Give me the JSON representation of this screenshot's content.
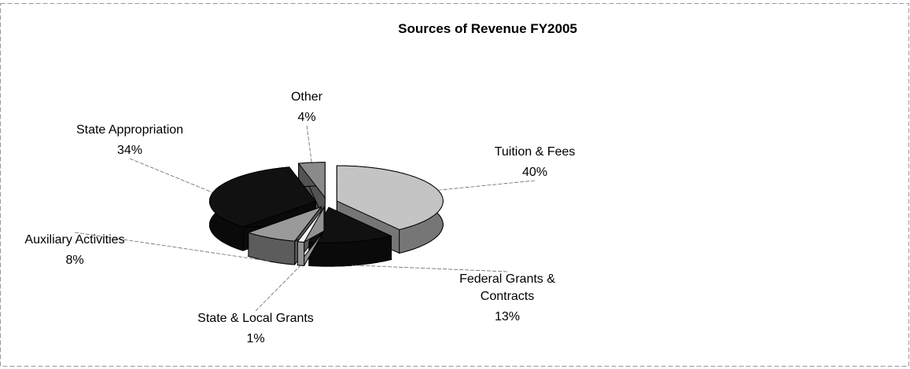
{
  "chart_data": {
    "type": "pie",
    "title": "Sources of Revenue FY2005",
    "categories": [
      "Tuition & Fees",
      "Federal Grants & Contracts",
      "State & Local Grants",
      "Auxiliary Activities",
      "State Appropriation",
      "Other"
    ],
    "values": [
      40,
      13,
      1,
      8,
      34,
      4
    ],
    "value_labels": [
      "40%",
      "13%",
      "1%",
      "8%",
      "34%",
      "4%"
    ],
    "colors": [
      "#c4c4c4",
      "#111111",
      "#f4f4f4",
      "#9a9a9a",
      "#111111",
      "#8a8a8a"
    ]
  }
}
